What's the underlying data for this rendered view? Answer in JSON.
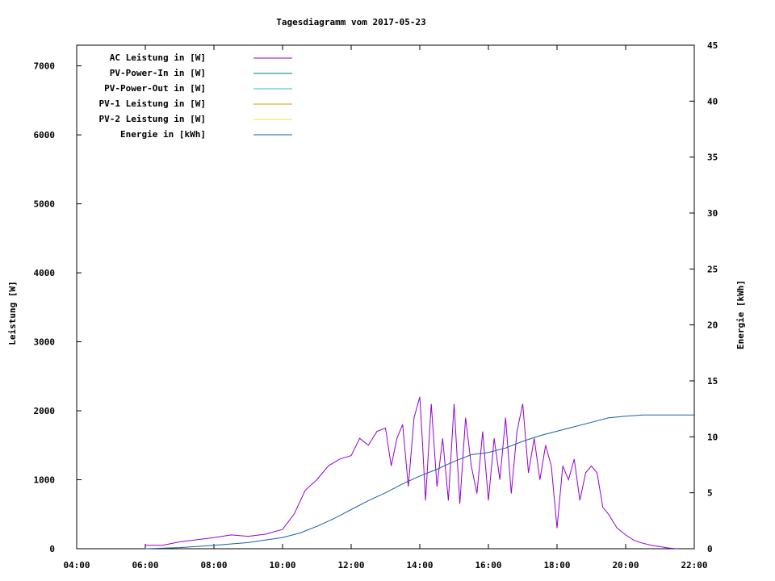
{
  "chart_data": {
    "type": "line",
    "title": "Tagesdiagramm vom 2017-05-23",
    "xlabel": "",
    "ylabel": "Leistung [W]",
    "y2label": "Energie [kWh]",
    "x_ticks": [
      "04:00",
      "06:00",
      "08:00",
      "10:00",
      "12:00",
      "14:00",
      "16:00",
      "18:00",
      "20:00",
      "22:00"
    ],
    "xlim_hours": [
      4,
      22
    ],
    "ylim": [
      0,
      7300
    ],
    "y_ticks": [
      0,
      1000,
      2000,
      3000,
      4000,
      5000,
      6000,
      7000
    ],
    "y2lim": [
      0,
      45
    ],
    "y2_ticks": [
      0,
      5,
      10,
      15,
      20,
      25,
      30,
      35,
      40,
      45
    ],
    "grid": false,
    "legend_position": "top-left",
    "series": [
      {
        "name": "AC Leistung in [W]",
        "color": "#9400d3",
        "axis": "y1",
        "x": [
          "06:00",
          "06:30",
          "07:00",
          "07:30",
          "08:00",
          "08:30",
          "09:00",
          "09:30",
          "10:00",
          "10:20",
          "10:40",
          "11:00",
          "11:20",
          "11:40",
          "12:00",
          "12:15",
          "12:30",
          "12:45",
          "13:00",
          "13:10",
          "13:20",
          "13:30",
          "13:40",
          "13:50",
          "14:00",
          "14:05",
          "14:10",
          "14:20",
          "14:30",
          "14:40",
          "14:50",
          "15:00",
          "15:10",
          "15:20",
          "15:30",
          "15:40",
          "15:50",
          "16:00",
          "16:10",
          "16:20",
          "16:30",
          "16:40",
          "16:50",
          "17:00",
          "17:10",
          "17:20",
          "17:30",
          "17:40",
          "17:50",
          "18:00",
          "18:10",
          "18:20",
          "18:30",
          "18:40",
          "18:50",
          "19:00",
          "19:10",
          "19:20",
          "19:30",
          "19:45",
          "20:00",
          "20:15",
          "20:30",
          "20:45",
          "21:00",
          "21:15",
          "21:30"
        ],
        "values": [
          50,
          50,
          100,
          130,
          160,
          200,
          180,
          210,
          280,
          500,
          850,
          1000,
          1200,
          1300,
          1350,
          1600,
          1500,
          1700,
          1750,
          1200,
          1600,
          1800,
          900,
          1900,
          2200,
          1500,
          700,
          2100,
          900,
          1600,
          700,
          2100,
          650,
          1900,
          1200,
          800,
          1700,
          700,
          1600,
          1000,
          1900,
          800,
          1700,
          2100,
          1100,
          1600,
          1000,
          1500,
          1200,
          300,
          1200,
          1000,
          1300,
          700,
          1100,
          1200,
          1100,
          600,
          500,
          300,
          200,
          120,
          80,
          50,
          30,
          10,
          0
        ]
      },
      {
        "name": "PV-Power-In in [W]",
        "color": "#008080",
        "axis": "y1",
        "x": [],
        "values": []
      },
      {
        "name": "PV-Power-Out in [W]",
        "color": "#3cb4d2",
        "axis": "y1",
        "x": [],
        "values": []
      },
      {
        "name": "PV-1 Leistung in [W]",
        "color": "#c8a000",
        "axis": "y1",
        "x": [],
        "values": []
      },
      {
        "name": "PV-2 Leistung in [W]",
        "color": "#f0e040",
        "axis": "y1",
        "x": [],
        "values": []
      },
      {
        "name": "Energie in [kWh]",
        "color": "#1a5fa0",
        "axis": "y2",
        "x": [
          "06:00",
          "07:00",
          "08:00",
          "09:00",
          "10:00",
          "10:30",
          "11:00",
          "11:30",
          "12:00",
          "12:30",
          "13:00",
          "13:30",
          "14:00",
          "14:30",
          "15:00",
          "15:30",
          "16:00",
          "16:30",
          "17:00",
          "17:30",
          "18:00",
          "18:30",
          "19:00",
          "19:30",
          "20:00",
          "20:30",
          "21:00",
          "22:00"
        ],
        "values": [
          0,
          0.1,
          0.3,
          0.55,
          1.0,
          1.4,
          2.0,
          2.7,
          3.5,
          4.3,
          5.0,
          5.8,
          6.5,
          7.1,
          7.8,
          8.4,
          8.6,
          9.0,
          9.6,
          10.1,
          10.5,
          10.9,
          11.3,
          11.7,
          11.85,
          11.95,
          11.95,
          11.95
        ]
      }
    ]
  }
}
